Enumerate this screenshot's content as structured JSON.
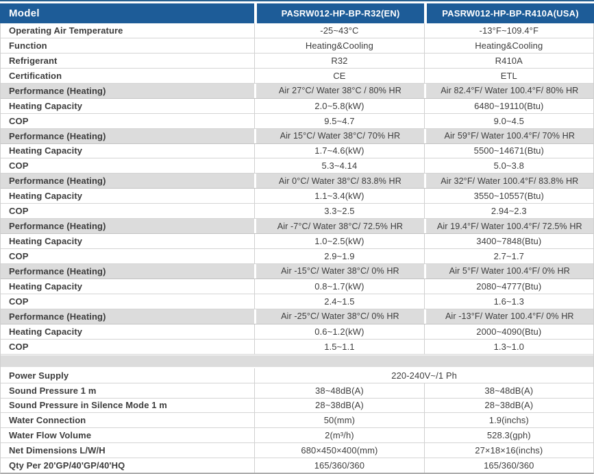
{
  "doc_title": "Heat pump specification table",
  "colors": {
    "header_bg": "#1d5c98",
    "top_rule": "#27608f",
    "band_bg": "#dcdcdc",
    "border": "#cfcfcf",
    "header_text": "#ffffff",
    "body_text": "#3c3c3c"
  },
  "header": {
    "model": "Model",
    "columns": [
      "PASRW012-HP-BP-R32(EN)",
      "PASRW012-HP-BP-R410A(USA)"
    ]
  },
  "rows": [
    {
      "label": "Operating Air Temperature",
      "v1": "-25~43°C",
      "v2": "-13°F~109.4°F"
    },
    {
      "label": "Function",
      "v1": "Heating&Cooling",
      "v2": "Heating&Cooling"
    },
    {
      "label": "Refrigerant",
      "v1": "R32",
      "v2": "R410A"
    },
    {
      "label": "Certification",
      "v1": "CE",
      "v2": "ETL"
    },
    {
      "label": "Performance (Heating)",
      "v1": "Air 27°C/ Water 38°C / 80% HR",
      "v2": "Air 82.4°F/ Water 100.4°F/ 80% HR"
    },
    {
      "label": "Heating Capacity",
      "v1": "2.0~5.8(kW)",
      "v2": "6480~19110(Btu)"
    },
    {
      "label": "COP",
      "v1": "9.5~4.7",
      "v2": "9.0~4.5"
    },
    {
      "label": "Performance (Heating)",
      "v1": "Air 15°C/ Water 38°C/ 70% HR",
      "v2": "Air 59°F/ Water 100.4°F/ 70% HR"
    },
    {
      "label": "Heating Capacity",
      "v1": "1.7~4.6(kW)",
      "v2": "5500~14671(Btu)"
    },
    {
      "label": "COP",
      "v1": "5.3~4.14",
      "v2": "5.0~3.8"
    },
    {
      "label": "Performance (Heating)",
      "v1": "Air 0°C/ Water 38°C/ 83.8% HR",
      "v2": "Air 32°F/ Water 100.4°F/ 83.8% HR"
    },
    {
      "label": "Heating Capacity",
      "v1": "1.1~3.4(kW)",
      "v2": "3550~10557(Btu)"
    },
    {
      "label": "COP",
      "v1": "3.3~2.5",
      "v2": "2.94~2.3"
    },
    {
      "label": "Performance (Heating)",
      "v1": "Air -7°C/ Water 38°C/ 72.5% HR",
      "v2": "Air 19.4°F/ Water 100.4°F/ 72.5% HR"
    },
    {
      "label": "Heating Capacity",
      "v1": "1.0~2.5(kW)",
      "v2": "3400~7848(Btu)"
    },
    {
      "label": "COP",
      "v1": "2.9~1.9",
      "v2": "2.7~1.7"
    },
    {
      "label": "Performance (Heating)",
      "v1": "Air -15°C/ Water 38°C/ 0% HR",
      "v2": "Air 5°F/ Water 100.4°F/ 0% HR"
    },
    {
      "label": "Heating Capacity",
      "v1": "0.8~1.7(kW)",
      "v2": "2080~4777(Btu)"
    },
    {
      "label": "COP",
      "v1": "2.4~1.5",
      "v2": "1.6~1.3"
    },
    {
      "label": "Performance (Heating)",
      "v1": "Air -25°C/ Water 38°C/ 0% HR",
      "v2": "Air -13°F/ Water 100.4°F/ 0% HR"
    },
    {
      "label": "Heating Capacity",
      "v1": "0.6~1.2(kW)",
      "v2": "2000~4090(Btu)"
    },
    {
      "label": "COP",
      "v1": "1.5~1.1",
      "v2": "1.3~1.0"
    },
    {
      "label": "Power Supply",
      "v1": "220-240V~/1 Ph"
    },
    {
      "label": "Sound Pressure 1 m",
      "v1": "38~48dB(A)",
      "v2": "38~48dB(A)"
    },
    {
      "label": "Sound Pressure in Silence Mode 1 m",
      "v1": "28~38dB(A)",
      "v2": "28~38dB(A)"
    },
    {
      "label": "Water Connection",
      "v1": "50(mm)",
      "v2": "1.9(inchs)"
    },
    {
      "label": "Water Flow Volume",
      "v1": "2(m³/h)",
      "v2": "528.3(gph)"
    },
    {
      "label": "Net Dimensions L/W/H",
      "v1": "680×450×400(mm)",
      "v2": "27×18×16(inchs)"
    },
    {
      "label": "Qty Per 20'GP/40'GP/40'HQ",
      "v1": "165/360/360",
      "v2": "165/360/360"
    }
  ]
}
